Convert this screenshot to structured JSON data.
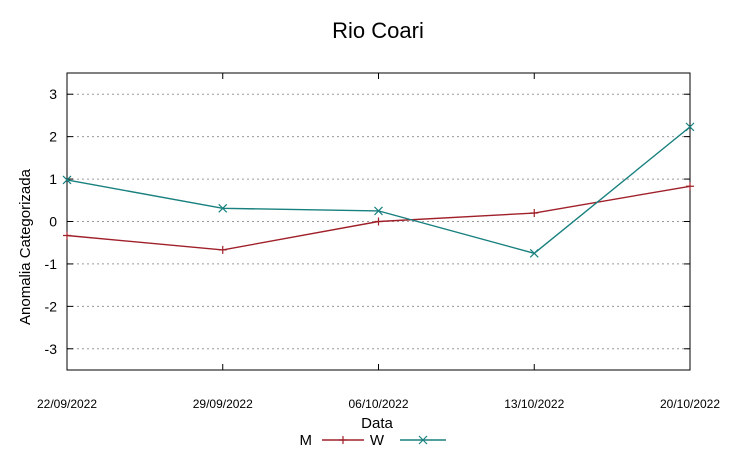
{
  "chart_data": {
    "type": "line",
    "title": "Rio Coari",
    "xlabel": "Data",
    "ylabel": "Anomalia Categorizada",
    "categories": [
      "22/09/2022",
      "29/09/2022",
      "06/10/2022",
      "13/10/2022",
      "20/10/2022"
    ],
    "ylim": [
      -3.5,
      3.5
    ],
    "yticks": [
      3,
      2,
      1,
      0,
      -1,
      -2,
      -3
    ],
    "grid": true,
    "legend_position": "bottom-center",
    "series": [
      {
        "name": "M",
        "color": "#a0202a",
        "marker": "plus",
        "values": [
          -0.33,
          -0.67,
          0.0,
          0.2,
          0.83
        ]
      },
      {
        "name": "W",
        "color": "#18807e",
        "marker": "cross",
        "values": [
          0.98,
          0.31,
          0.25,
          -0.75,
          2.23
        ]
      }
    ]
  }
}
